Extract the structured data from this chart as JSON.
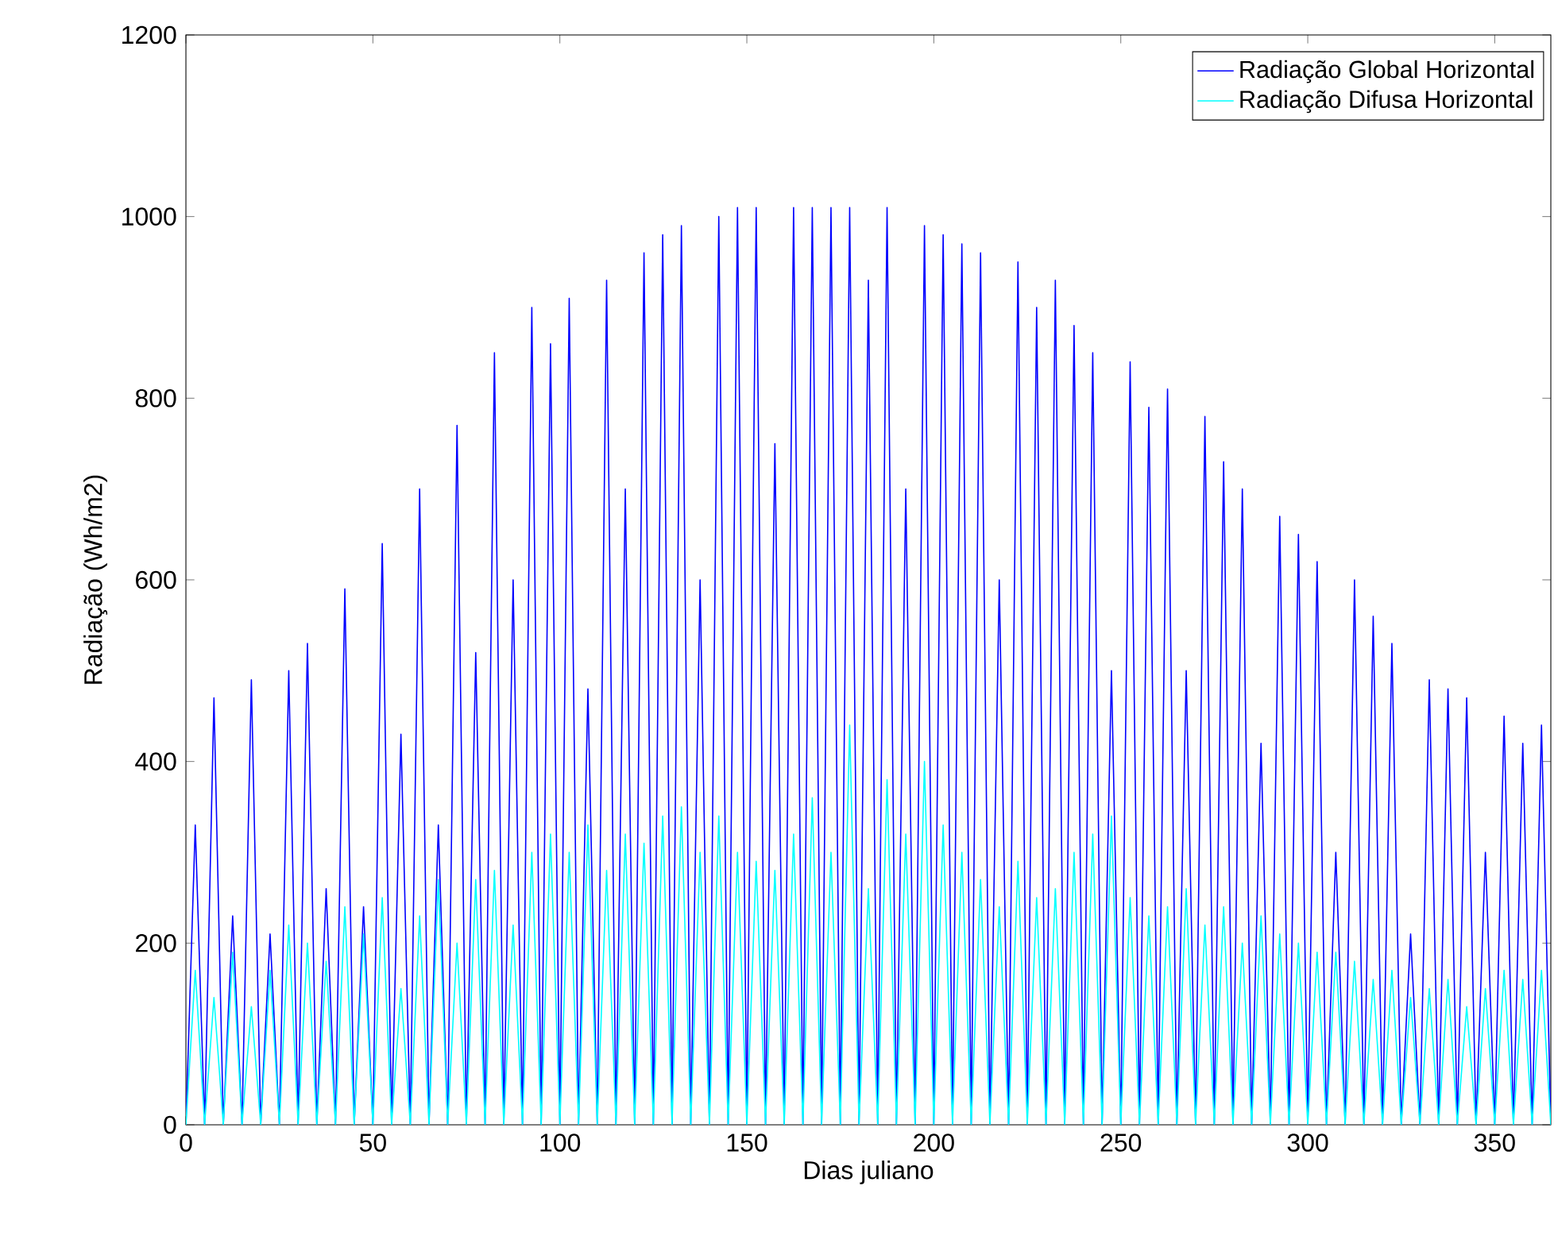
{
  "chart_data": {
    "type": "line",
    "xlabel": "Dias juliano",
    "ylabel": "Radiação (Wh/m2)",
    "xlim": [
      0,
      365
    ],
    "ylim": [
      0,
      1200
    ],
    "xticks": [
      0,
      50,
      100,
      150,
      200,
      250,
      300,
      350
    ],
    "yticks": [
      0,
      200,
      400,
      600,
      800,
      1000,
      1200
    ],
    "grid": false,
    "legend": "top right",
    "marker": "none",
    "line_style": "solid",
    "x": [
      0,
      2.5,
      5,
      7.5,
      10,
      12.5,
      15,
      17.5,
      20,
      22.5,
      25,
      27.5,
      30,
      32.5,
      35,
      37.5,
      40,
      42.5,
      45,
      47.5,
      50,
      52.5,
      55,
      57.5,
      60,
      62.5,
      65,
      67.5,
      70,
      72.5,
      75,
      77.5,
      80,
      82.5,
      85,
      87.5,
      90,
      92.5,
      95,
      97.5,
      100,
      102.5,
      105,
      107.5,
      110,
      112.5,
      115,
      117.5,
      120,
      122.5,
      125,
      127.5,
      130,
      132.5,
      135,
      137.5,
      140,
      142.5,
      145,
      147.5,
      150,
      152.5,
      155,
      157.5,
      160,
      162.5,
      165,
      167.5,
      170,
      172.5,
      175,
      177.5,
      180,
      182.5,
      185,
      187.5,
      190,
      192.5,
      195,
      197.5,
      200,
      202.5,
      205,
      207.5,
      210,
      212.5,
      215,
      217.5,
      220,
      222.5,
      225,
      227.5,
      230,
      232.5,
      235,
      237.5,
      240,
      242.5,
      245,
      247.5,
      250,
      252.5,
      255,
      257.5,
      260,
      262.5,
      265,
      267.5,
      270,
      272.5,
      275,
      277.5,
      280,
      282.5,
      285,
      287.5,
      290,
      292.5,
      295,
      297.5,
      300,
      302.5,
      305,
      307.5,
      310,
      312.5,
      315,
      317.5,
      320,
      322.5,
      325,
      327.5,
      330,
      332.5,
      335,
      337.5,
      340,
      342.5,
      345,
      347.5,
      350,
      352.5,
      355,
      357.5,
      360,
      362.5,
      365
    ],
    "series": [
      {
        "name": "Radiação Global Horizontal",
        "color": "#0000ff",
        "values": [
          0,
          330,
          0,
          470,
          0,
          230,
          0,
          490,
          0,
          210,
          0,
          500,
          0,
          530,
          0,
          260,
          0,
          590,
          0,
          240,
          0,
          640,
          0,
          430,
          0,
          700,
          0,
          330,
          0,
          770,
          0,
          520,
          0,
          850,
          0,
          600,
          0,
          900,
          0,
          860,
          0,
          910,
          0,
          480,
          0,
          930,
          0,
          700,
          0,
          960,
          0,
          980,
          0,
          990,
          0,
          600,
          0,
          1000,
          0,
          1010,
          0,
          1010,
          0,
          750,
          0,
          1010,
          0,
          1010,
          0,
          1010,
          0,
          1010,
          0,
          930,
          0,
          1010,
          0,
          700,
          0,
          990,
          0,
          980,
          0,
          970,
          0,
          960,
          0,
          600,
          0,
          950,
          0,
          900,
          0,
          930,
          0,
          880,
          0,
          850,
          0,
          500,
          0,
          840,
          0,
          790,
          0,
          810,
          0,
          500,
          0,
          780,
          0,
          730,
          0,
          700,
          0,
          420,
          0,
          670,
          0,
          650,
          0,
          620,
          0,
          300,
          0,
          600,
          0,
          560,
          0,
          530,
          0,
          210,
          0,
          490,
          0,
          480,
          0,
          470,
          0,
          300,
          0,
          450,
          0,
          420,
          0,
          440,
          0
        ]
      },
      {
        "name": "Radiação Difusa Horizontal",
        "color": "#00ffff",
        "values": [
          0,
          170,
          0,
          140,
          0,
          190,
          0,
          130,
          0,
          170,
          0,
          220,
          0,
          200,
          0,
          180,
          0,
          240,
          0,
          210,
          0,
          250,
          0,
          150,
          0,
          230,
          0,
          270,
          0,
          200,
          0,
          270,
          0,
          280,
          0,
          220,
          0,
          300,
          0,
          320,
          0,
          300,
          0,
          330,
          0,
          280,
          0,
          320,
          0,
          310,
          0,
          340,
          0,
          350,
          0,
          300,
          0,
          340,
          0,
          300,
          0,
          290,
          0,
          280,
          0,
          320,
          0,
          360,
          0,
          300,
          0,
          440,
          0,
          260,
          0,
          380,
          0,
          320,
          0,
          400,
          0,
          330,
          0,
          300,
          0,
          270,
          0,
          240,
          0,
          290,
          0,
          250,
          0,
          260,
          0,
          300,
          0,
          320,
          0,
          340,
          0,
          250,
          0,
          230,
          0,
          240,
          0,
          260,
          0,
          220,
          0,
          240,
          0,
          200,
          0,
          230,
          0,
          210,
          0,
          200,
          0,
          190,
          0,
          190,
          0,
          180,
          0,
          160,
          0,
          170,
          0,
          140,
          0,
          150,
          0,
          160,
          0,
          130,
          0,
          150,
          0,
          170,
          0,
          160,
          0,
          170,
          0
        ]
      }
    ]
  }
}
